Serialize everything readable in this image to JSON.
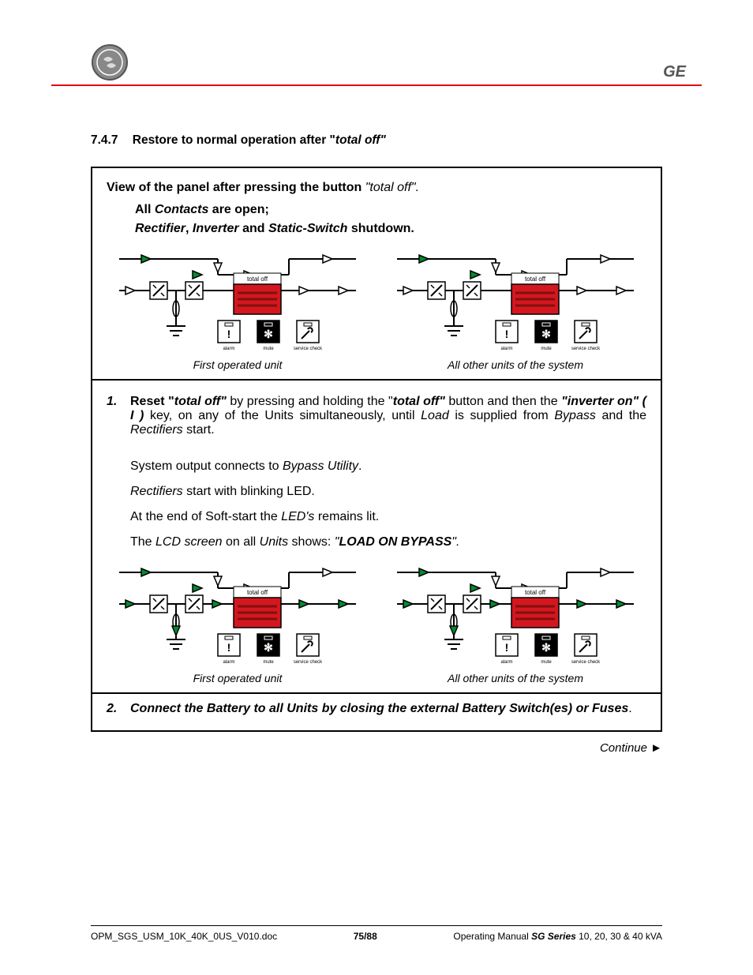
{
  "header": {
    "brand_text": "GE"
  },
  "section": {
    "number": "7.4.7",
    "title_lead": "Restore to normal operation after \"",
    "title_tail": "total off\""
  },
  "box": {
    "intro_prefix": "View of the panel after pressing the button ",
    "intro_quoted": "\"total off\".",
    "line_all_contacts_pre": "All ",
    "line_all_contacts_mid": "Contacts",
    "line_all_contacts_post": " are open;",
    "line_shutdown_pre": "",
    "line_shutdown_r": "Rectifier",
    "line_shutdown_c1": ", ",
    "line_shutdown_i": "Inverter",
    "line_shutdown_c2": " and ",
    "line_shutdown_s": "Static-Switch",
    "line_shutdown_post": " shutdown."
  },
  "diagrams": {
    "caption_first": "First operated unit",
    "caption_others": "All other units of the system",
    "labels": {
      "total_off": "total off",
      "alarm": "alarm",
      "mute": "mute",
      "service_check": "service check"
    },
    "colors": {
      "line": "#000000",
      "green": "#008c2e",
      "red": "#d4171f",
      "box_bg": "#ffffff",
      "panel_stroke": "#000000"
    }
  },
  "step1": {
    "num": "1.",
    "text_lead": "Reset \"",
    "text_to": "total off\"",
    "text_mid1": " by pressing and holding the \"",
    "text_to2": "total off\"",
    "text_mid2": " button and then the ",
    "text_inv": "\"inverter on\" ( I )",
    "text_mid3": " key, on any of the Units simultaneously, until ",
    "text_load": "Load",
    "text_mid4": " is supplied from ",
    "text_byp": "Bypass",
    "text_mid5": " and the ",
    "text_rect": "Rectifiers",
    "text_end": " start.",
    "sub1_pre": "System output connects to ",
    "sub1_i": "Bypass Utility",
    "sub1_post": ".",
    "sub2_i": "Rectifiers",
    "sub2_post": " start with blinking LED.",
    "sub3_pre": "At the end of Soft-start the ",
    "sub3_i": "LED's",
    "sub3_post": " remains lit.",
    "sub4_pre": "The ",
    "sub4_i1": "LCD screen",
    "sub4_mid": " on all ",
    "sub4_i2": "Units",
    "sub4_mid2": " shows: ",
    "sub4_q": "\"",
    "sub4_b": "LOAD ON BYPASS",
    "sub4_q2": "\"."
  },
  "step2": {
    "num": "2.",
    "text": "Connect the Battery to all Units by closing the external Battery Switch(es) or Fuses",
    "dot": "."
  },
  "continue": {
    "text": "Continue ►"
  },
  "footer": {
    "left": "OPM_SGS_USM_10K_40K_0US_V010.doc",
    "center": "75/88",
    "right_pre": "Operating Manual ",
    "right_b": "SG Series",
    "right_post": " 10, 20, 30 & 40 kVA"
  }
}
